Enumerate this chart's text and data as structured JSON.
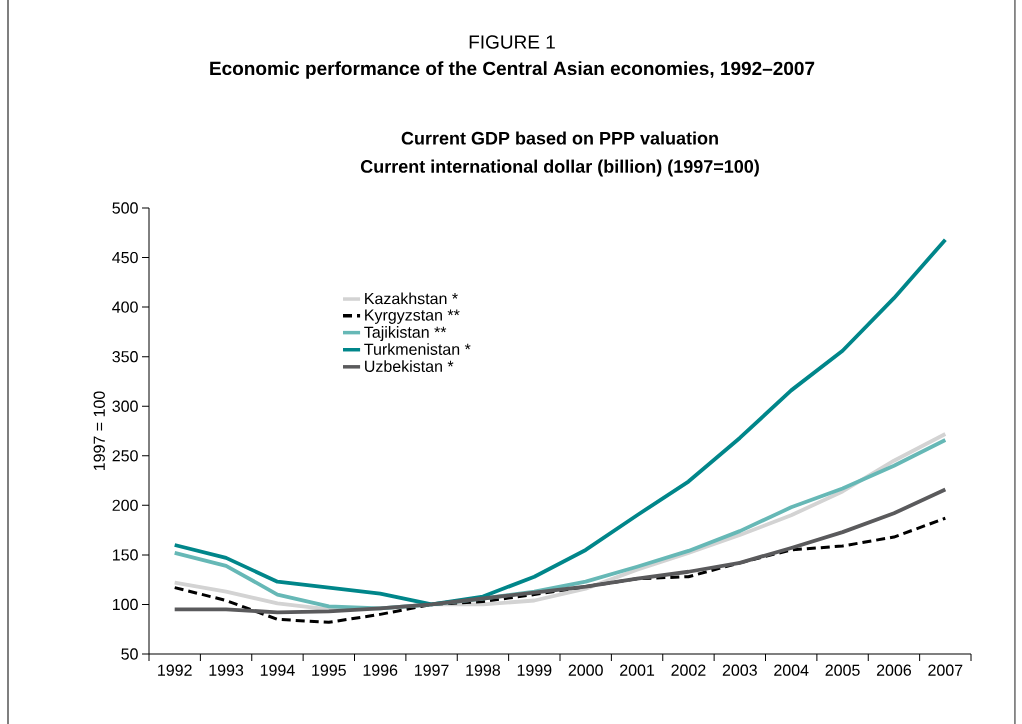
{
  "chart_data": {
    "type": "line",
    "title": "Economic performance of the Central Asian economies, 1992–2007",
    "subtitle": "Current GDP based on PPP valuation",
    "annotations": [
      "FIGURE 1",
      "Current international dollar (billion) (1997=100)"
    ],
    "ylabel": "1997 = 100",
    "categories": [
      "1992",
      "1993",
      "1994",
      "1995",
      "1996",
      "1997",
      "1998",
      "1999",
      "2000",
      "2001",
      "2002",
      "2003",
      "2004",
      "2005",
      "2006",
      "2007"
    ],
    "ylim": [
      50,
      500
    ],
    "yticks": [
      50,
      100,
      150,
      200,
      250,
      300,
      350,
      400,
      450,
      500
    ],
    "legend": "top left",
    "grid": false,
    "series": [
      {
        "name": "Kazakhstan *",
        "color": "#d3d3d3",
        "values": [
          122,
          113,
          101,
          95,
          96,
          100,
          100,
          104,
          116,
          135,
          152,
          170,
          190,
          214,
          245,
          272
        ]
      },
      {
        "name": "Kyrgyzstan **",
        "color": "#000000",
        "line_style": "dashed",
        "values": [
          117,
          104,
          85,
          82,
          90,
          100,
          103,
          110,
          118,
          126,
          128,
          142,
          155,
          159,
          168,
          187
        ]
      },
      {
        "name": "Tajikistan **",
        "color": "#66b8b6",
        "values": [
          152,
          139,
          110,
          98,
          96,
          100,
          106,
          113,
          123,
          138,
          154,
          174,
          198,
          217,
          240,
          266
        ]
      },
      {
        "name": "Turkmenistan *",
        "color": "#00868a",
        "values": [
          160,
          147,
          123,
          117,
          111,
          100,
          108,
          128,
          155,
          190,
          224,
          268,
          316,
          356,
          409,
          468
        ]
      },
      {
        "name": "Uzbekistan *",
        "color": "#5a5a5c",
        "values": [
          95,
          95,
          92,
          93,
          96,
          100,
          106,
          112,
          118,
          126,
          133,
          142,
          157,
          173,
          192,
          216
        ]
      }
    ]
  }
}
